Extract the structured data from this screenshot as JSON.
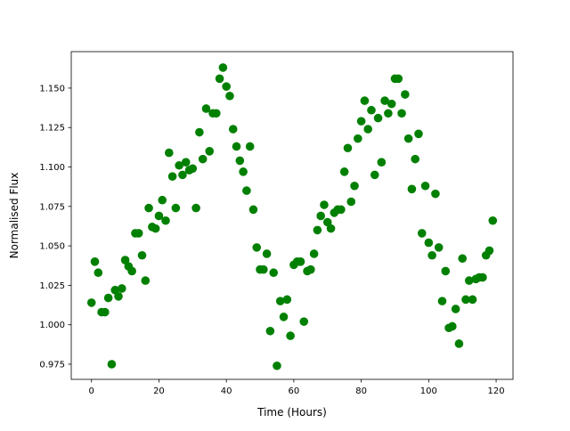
{
  "chart_data": {
    "type": "scatter",
    "title": "",
    "xlabel": "Time (Hours)",
    "ylabel": "Normalised Flux",
    "xlim": [
      -6,
      125
    ],
    "ylim": [
      0.9654,
      1.1731
    ],
    "xticks": [
      0,
      20,
      40,
      60,
      80,
      100,
      120
    ],
    "xtick_labels": [
      "0",
      "20",
      "40",
      "60",
      "80",
      "100",
      "120"
    ],
    "yticks": [
      0.975,
      1.0,
      1.025,
      1.05,
      1.075,
      1.1,
      1.125,
      1.15
    ],
    "ytick_labels": [
      "0.975",
      "1.000",
      "1.025",
      "1.050",
      "1.075",
      "1.100",
      "1.125",
      "1.150"
    ],
    "grid": false,
    "marker_color": "#008000",
    "x": [
      0,
      1,
      2,
      3,
      4,
      5,
      6,
      7,
      8,
      9,
      10,
      11,
      12,
      13,
      14,
      15,
      16,
      17,
      18,
      19,
      20,
      21,
      22,
      23,
      24,
      25,
      26,
      27,
      28,
      29,
      30,
      31,
      32,
      33,
      34,
      35,
      36,
      37,
      38,
      39,
      40,
      41,
      42,
      43,
      44,
      45,
      46,
      47,
      48,
      49,
      50,
      51,
      52,
      53,
      54,
      55,
      56,
      57,
      58,
      59,
      60,
      61,
      62,
      63,
      64,
      65,
      66,
      67,
      68,
      69,
      70,
      71,
      72,
      73,
      74,
      75,
      76,
      77,
      78,
      79,
      80,
      81,
      82,
      83,
      84,
      85,
      86,
      87,
      88,
      89,
      90,
      91,
      92,
      93,
      94,
      95,
      96,
      97,
      98,
      99,
      100,
      101,
      102,
      103,
      104,
      105,
      106,
      107,
      108,
      109,
      110,
      111,
      112,
      113,
      114,
      115,
      116,
      117,
      118,
      119
    ],
    "y": [
      1.014,
      1.04,
      1.033,
      1.008,
      1.008,
      1.017,
      0.975,
      1.022,
      1.018,
      1.023,
      1.041,
      1.037,
      1.034,
      1.058,
      1.058,
      1.044,
      1.028,
      1.074,
      1.062,
      1.061,
      1.069,
      1.079,
      1.066,
      1.109,
      1.094,
      1.074,
      1.101,
      1.095,
      1.103,
      1.098,
      1.099,
      1.074,
      1.122,
      1.105,
      1.137,
      1.11,
      1.134,
      1.134,
      1.156,
      1.163,
      1.151,
      1.145,
      1.124,
      1.113,
      1.104,
      1.097,
      1.085,
      1.113,
      1.073,
      1.049,
      1.035,
      1.035,
      1.045,
      0.996,
      1.033,
      0.974,
      1.015,
      1.005,
      1.016,
      0.993,
      1.038,
      1.04,
      1.04,
      1.002,
      1.034,
      1.035,
      1.045,
      1.06,
      1.069,
      1.076,
      1.065,
      1.061,
      1.071,
      1.073,
      1.073,
      1.097,
      1.112,
      1.078,
      1.088,
      1.118,
      1.129,
      1.142,
      1.124,
      1.136,
      1.095,
      1.131,
      1.103,
      1.142,
      1.134,
      1.14,
      1.156,
      1.156,
      1.134,
      1.146,
      1.118,
      1.086,
      1.105,
      1.121,
      1.058,
      1.088,
      1.052,
      1.044,
      1.083,
      1.049,
      1.015,
      1.034,
      0.998,
      0.999,
      1.01,
      0.988,
      1.042,
      1.016,
      1.028,
      1.016,
      1.029,
      1.03,
      1.03,
      1.044,
      1.047,
      1.066
    ]
  }
}
